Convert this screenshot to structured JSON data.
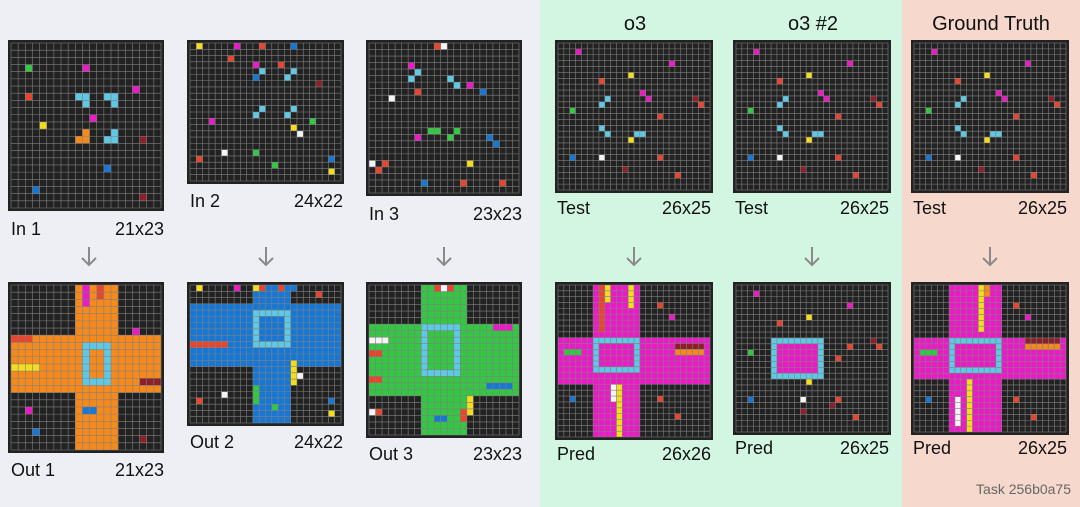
{
  "columns": {
    "o3": "o3",
    "o3_2": "o3 #2",
    "ground_truth": "Ground Truth"
  },
  "colors": {
    "background": "#222222",
    "gridline": "#808080",
    "cyan": "#5ec8e5",
    "orange": "#f5891c",
    "blue": "#1677d4",
    "green": "#34c743",
    "magenta": "#eb19c6",
    "yellow": "#f4dd1f",
    "red": "#e8452f",
    "maroon": "#8c1f27",
    "white": "#f5f5f5",
    "arrow": "#8a8a8a"
  },
  "panels": {
    "in1": {
      "label": "In 1",
      "dims": "21x23"
    },
    "out1": {
      "label": "Out 1",
      "dims": "21x23"
    },
    "in2": {
      "label": "In 2",
      "dims": "24x22"
    },
    "out2": {
      "label": "Out 2",
      "dims": "24x22"
    },
    "in3": {
      "label": "In 3",
      "dims": "23x23"
    },
    "out3": {
      "label": "Out 3",
      "dims": "23x23"
    },
    "test_o3": {
      "label": "Test",
      "dims": "26x25"
    },
    "pred_o3": {
      "label": "Pred",
      "dims": "26x26"
    },
    "test_o3_2": {
      "label": "Test",
      "dims": "26x25"
    },
    "pred_o3_2": {
      "label": "Pred",
      "dims": "26x25"
    },
    "test_gt": {
      "label": "Test",
      "dims": "26x25"
    },
    "pred_gt": {
      "label": "Pred",
      "dims": "26x25"
    }
  },
  "task_id": "Task 256b0a75"
}
